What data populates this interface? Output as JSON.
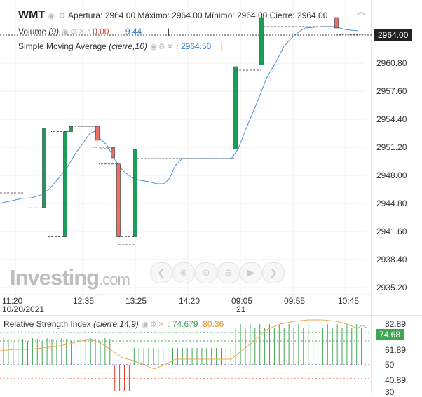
{
  "header": {
    "ticker": "WMT",
    "open_label": "Apertura:",
    "open_value": "2964.00",
    "high_label": "Máximo:",
    "high_value": "2964.00",
    "low_label": "Mínimo:",
    "low_value": "2964.00",
    "close_label": "Cierre:",
    "close_value": "2964.00",
    "collapse_icon": "chevron-up-icon"
  },
  "legend": {
    "volume": {
      "name": "Volume",
      "param": "(9)",
      "value_red": "0.00",
      "value_blue": "9.44"
    },
    "sma": {
      "name": "Simple Moving Average",
      "param": "(cierre,10)",
      "value": "2964.50"
    }
  },
  "price_badge": "2964.00",
  "watermark": {
    "text": "Investing",
    "suffix": ".com"
  },
  "toolbar": {
    "buttons": [
      "chevron-left-icon",
      "zoom-in-icon",
      "zoom-reset-icon",
      "zoom-out-icon",
      "play-icon",
      "chevron-right-icon"
    ]
  },
  "chart_data": [
    {
      "type": "candlestick",
      "x_ticks": [
        "11:20",
        "12:35",
        "13:25",
        "14:20",
        "09:05",
        "09:55",
        "10:45"
      ],
      "x_sub_ticks": [
        "10/20/2021",
        "21"
      ],
      "y_ticks": [
        "2964.00",
        "2960.80",
        "2957.60",
        "2954.40",
        "2951.20",
        "2948.00",
        "2944.80",
        "2941.60",
        "2938.40",
        "2935.20"
      ],
      "ylim": [
        2934.0,
        2966.0
      ],
      "colors": {
        "up": "#1b9e5a",
        "down": "#ee6e63",
        "sma": "#4a90d9"
      },
      "candles": [
        {
          "o": 2944.3,
          "h": 2953.4,
          "l": 2944.3,
          "c": 2953.4,
          "d": "up"
        },
        {
          "o": 2941.0,
          "h": 2953.0,
          "l": 2941.0,
          "c": 2953.0,
          "d": "up"
        },
        {
          "o": 2953.0,
          "h": 2953.6,
          "l": 2953.0,
          "c": 2953.6,
          "d": "up"
        },
        {
          "o": 2953.6,
          "h": 2953.6,
          "l": 2952.0,
          "c": 2952.0,
          "d": "down"
        },
        {
          "o": 2951.2,
          "h": 2951.2,
          "l": 2950.0,
          "c": 2950.0,
          "d": "down"
        },
        {
          "o": 2949.3,
          "h": 2949.3,
          "l": 2941.0,
          "c": 2941.0,
          "d": "down"
        },
        {
          "o": 2941.0,
          "h": 2951.0,
          "l": 2941.0,
          "c": 2951.0,
          "d": "up"
        },
        {
          "o": 2951.0,
          "h": 2960.4,
          "l": 2951.0,
          "c": 2960.4,
          "d": "up"
        },
        {
          "o": 2960.6,
          "h": 2966.0,
          "l": 2960.6,
          "c": 2966.0,
          "d": "up"
        },
        {
          "o": 2966.0,
          "h": 2966.0,
          "l": 2964.8,
          "c": 2964.8,
          "d": "down"
        }
      ]
    },
    {
      "type": "line",
      "title": "Relative Strength Index",
      "param": "(cierre,14,9)",
      "values_shown": [
        "74.679",
        "80.36"
      ],
      "badge": "74.68",
      "y_ticks": [
        "82.89",
        "61.89",
        "50",
        "40.89",
        "30"
      ],
      "ylim": [
        30,
        86
      ],
      "levels": {
        "upper": 70,
        "lower": 30,
        "mid": 50
      },
      "colors": {
        "rsi_up": "#3fa653",
        "rsi_down": "#e0432f",
        "signal": "#f0a84a"
      }
    }
  ]
}
